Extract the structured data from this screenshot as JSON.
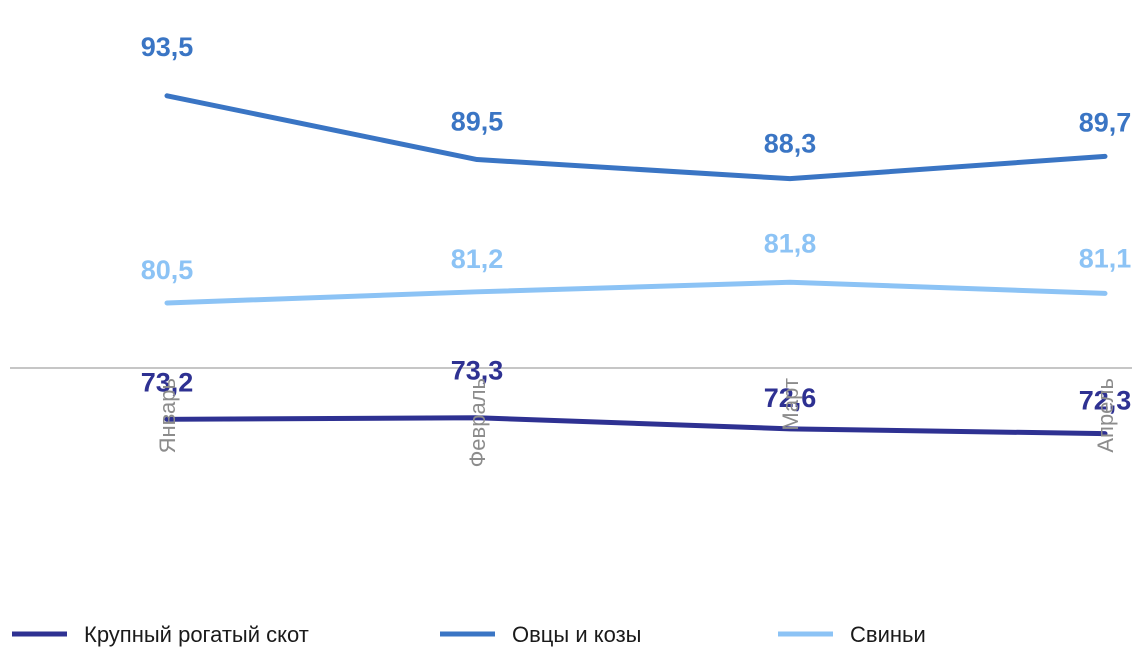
{
  "chart_data": {
    "type": "line",
    "categories": [
      "Январь",
      "Февраль",
      "Март",
      "Апрель"
    ],
    "series": [
      {
        "name": "Крупный рогатый скот",
        "values": [
          73.2,
          73.3,
          72.6,
          72.3
        ],
        "labels": [
          "73,2",
          "73,3",
          "72,6",
          "72,3"
        ],
        "color": "#2e3192"
      },
      {
        "name": "Овцы и козы",
        "values": [
          93.5,
          89.5,
          88.3,
          89.7
        ],
        "labels": [
          "93,5",
          "89,5",
          "88,3",
          "89,7"
        ],
        "color": "#3a75c4"
      },
      {
        "name": "Свиньи",
        "values": [
          80.5,
          81.2,
          81.8,
          81.1
        ],
        "labels": [
          "80,5",
          "81,2",
          "81,8",
          "81,1"
        ],
        "color": "#8cc3f5"
      }
    ],
    "ylim": [
      65,
      97
    ],
    "grid": false,
    "legend": "bottom",
    "axis_line_color": "#c6c6c6",
    "tick_label_color": "#8c8c8c"
  }
}
